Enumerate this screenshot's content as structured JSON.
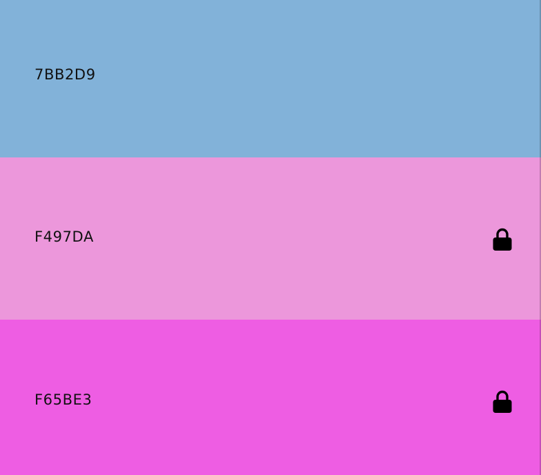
{
  "swatches": [
    {
      "hex": "7BB2D9",
      "color": "#82B2D9",
      "locked": false,
      "lock_icon": ""
    },
    {
      "hex": "F497DA",
      "color": "#EC97DB",
      "locked": true,
      "lock_icon": "lock-icon"
    },
    {
      "hex": "F65BE3",
      "color": "#EE5DE3",
      "locked": true,
      "lock_icon": "lock-icon"
    }
  ]
}
